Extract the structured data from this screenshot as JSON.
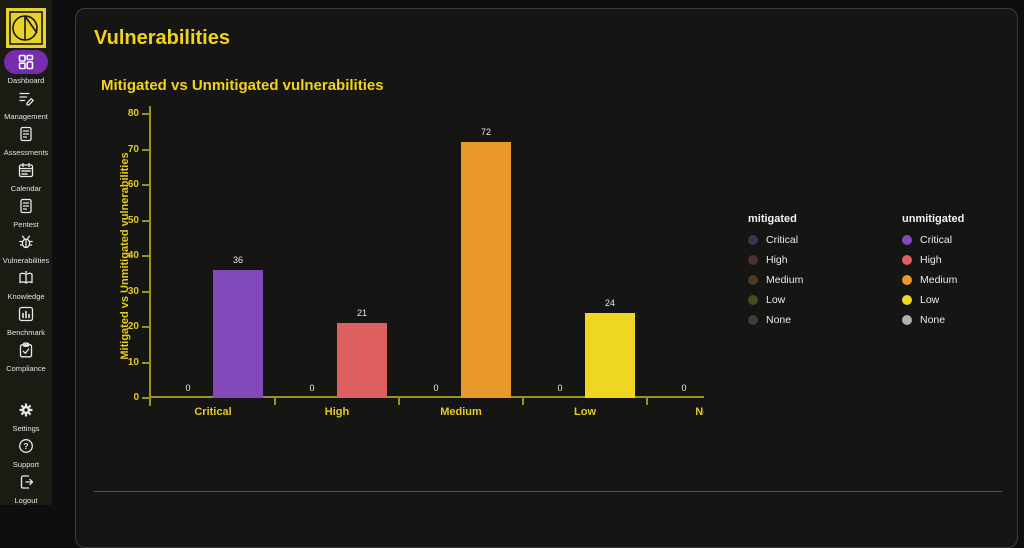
{
  "page": {
    "title": "Vulnerabilities"
  },
  "sidebar": {
    "items": [
      {
        "label": "Dashboard",
        "icon": "dashboard-grid-icon",
        "active": true
      },
      {
        "label": "Management",
        "icon": "management-edit-icon",
        "active": false
      },
      {
        "label": "Assessments",
        "icon": "assessments-doc-icon",
        "active": false
      },
      {
        "label": "Calendar",
        "icon": "calendar-icon",
        "active": false
      },
      {
        "label": "Pentest",
        "icon": "pentest-doc-icon",
        "active": false
      },
      {
        "label": "Vulnerabilities",
        "icon": "bug-icon",
        "active": false
      },
      {
        "label": "Knowledge",
        "icon": "knowledge-book-icon",
        "active": false
      },
      {
        "label": "Benchmark",
        "icon": "benchmark-chart-icon",
        "active": false
      },
      {
        "label": "Compliance",
        "icon": "compliance-clipboard-icon",
        "active": false
      }
    ],
    "footer_items": [
      {
        "label": "Settings",
        "icon": "settings-gear-icon",
        "active": false
      },
      {
        "label": "Support",
        "icon": "support-question-icon",
        "active": false
      },
      {
        "label": "Logout",
        "icon": "logout-icon",
        "active": false
      }
    ]
  },
  "chart_data": {
    "type": "bar",
    "title": "Mitigated vs Unmitigated vulnerabilities",
    "categories": [
      "Critical",
      "High",
      "Medium",
      "Low",
      "None"
    ],
    "series": [
      {
        "name": "mitigated",
        "values": [
          0,
          0,
          0,
          0,
          0
        ],
        "colors": [
          "#45304f",
          "#4e3030",
          "#4e3a22",
          "#4c4820",
          "#3c3c3c"
        ]
      },
      {
        "name": "unmitigated",
        "values": [
          36,
          21,
          72,
          24,
          0
        ],
        "colors": [
          "#8348ba",
          "#dd5f5f",
          "#e9992c",
          "#eed623",
          "#b0b0b0"
        ]
      }
    ],
    "xlabel": "",
    "ylabel": "Mitigated vs Unmitigated vulnerabilities",
    "ylim": [
      0,
      80
    ],
    "yticks": [
      0,
      10,
      20,
      30,
      40,
      50,
      60,
      70,
      80
    ],
    "grid": false,
    "legend_position": "right",
    "bar_value_labels_shown": true
  },
  "legend": {
    "groups": [
      {
        "title": "mitigated",
        "items": [
          {
            "label": "Critical",
            "color": "#45304f"
          },
          {
            "label": "High",
            "color": "#4e3030"
          },
          {
            "label": "Medium",
            "color": "#4e3a22"
          },
          {
            "label": "Low",
            "color": "#4c4820"
          },
          {
            "label": "None",
            "color": "#3c3c3c"
          }
        ]
      },
      {
        "title": "unmitigated",
        "items": [
          {
            "label": "Critical",
            "color": "#8348ba"
          },
          {
            "label": "High",
            "color": "#dd5f5f"
          },
          {
            "label": "Medium",
            "color": "#e9992c"
          },
          {
            "label": "Low",
            "color": "#eed623"
          },
          {
            "label": "None",
            "color": "#b0b0b0"
          }
        ]
      }
    ]
  },
  "colors": {
    "accent_yellow": "#f2d318",
    "axis": "#9c921e",
    "axis_text": "#e5ca1d",
    "active_pill": "#762cae",
    "card_bg": "#151514",
    "sidebar_bg": "#1b1a13"
  }
}
